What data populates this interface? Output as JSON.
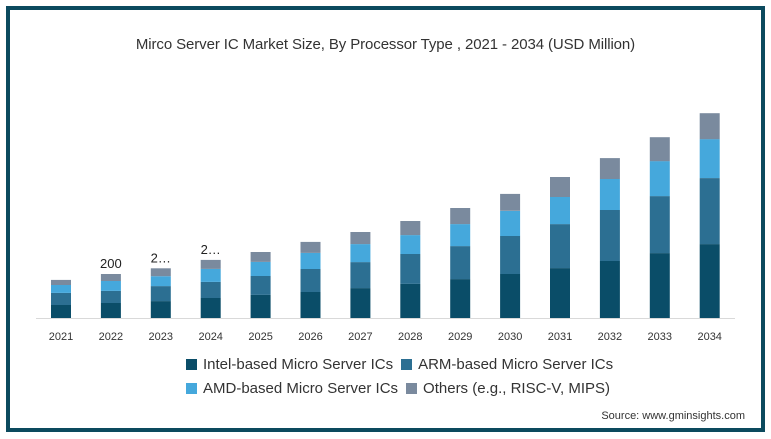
{
  "chart_data": {
    "type": "bar",
    "stacked": true,
    "title": "Mirco Server IC Market Size, By Processor  Type ,  2021 - 2034 (USD Million)",
    "xlabel": "",
    "ylabel": "",
    "ylim": [
      0,
      1000
    ],
    "grid": false,
    "legend_position": "bottom",
    "categories": [
      "2021",
      "2022",
      "2023",
      "2024",
      "2025",
      "2026",
      "2027",
      "2028",
      "2029",
      "2030",
      "2031",
      "2032",
      "2033",
      "2034"
    ],
    "series": [
      {
        "name": "Intel-based Micro Server ICs",
        "color": "#0a4d68",
        "values": [
          59,
          68,
          77,
          91,
          105,
          118,
          136,
          155,
          177,
          200,
          227,
          259,
          295,
          336
        ]
      },
      {
        "name": "ARM-based Micro Server ICs",
        "color": "#2c6f92",
        "values": [
          55,
          55,
          68,
          73,
          86,
          105,
          118,
          136,
          150,
          173,
          200,
          232,
          259,
          300
        ]
      },
      {
        "name": "AMD-based Micro Server ICs",
        "color": "#45a8dc",
        "values": [
          36,
          45,
          45,
          59,
          64,
          73,
          82,
          86,
          100,
          114,
          123,
          141,
          159,
          177
        ]
      },
      {
        "name": "Others (e.g., RISC-V, MIPS)",
        "color": "#7a8a9e",
        "values": [
          23,
          32,
          36,
          41,
          45,
          50,
          55,
          64,
          73,
          77,
          91,
          95,
          109,
          118
        ]
      }
    ],
    "data_labels": [
      {
        "category": "2022",
        "text": "200"
      },
      {
        "category": "2023",
        "text": "2…"
      },
      {
        "category": "2024",
        "text": "2…"
      }
    ]
  },
  "source": "Source: www.gminsights.com",
  "colors": {
    "frame": "#0c4a5e",
    "axis": "#d9d9d9"
  }
}
